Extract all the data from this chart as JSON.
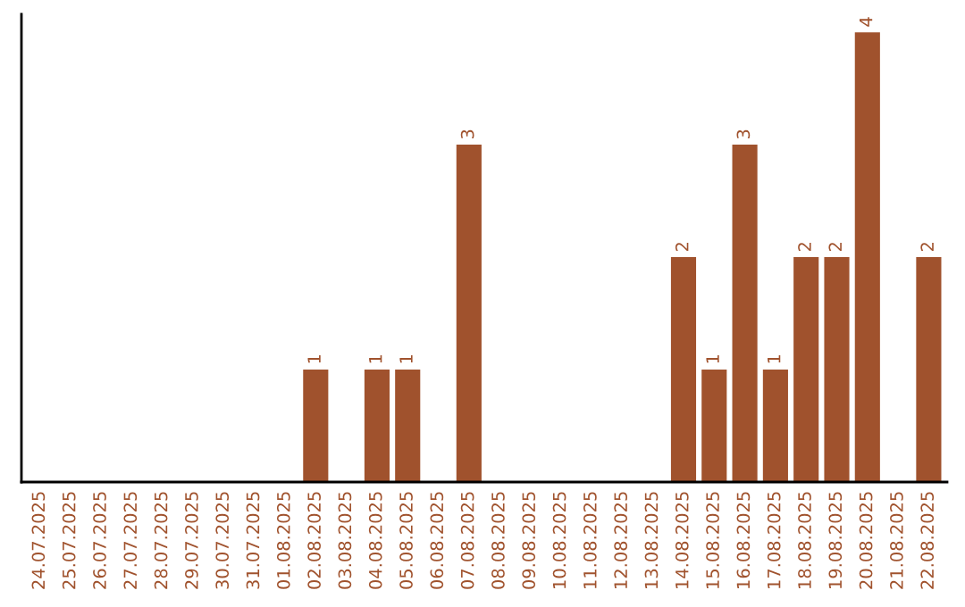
{
  "chart_data": {
    "type": "bar",
    "categories": [
      "24.07.2025",
      "25.07.2025",
      "26.07.2025",
      "27.07.2025",
      "28.07.2025",
      "29.07.2025",
      "30.07.2025",
      "31.07.2025",
      "01.08.2025",
      "02.08.2025",
      "03.08.2025",
      "04.08.2025",
      "05.08.2025",
      "06.08.2025",
      "07.08.2025",
      "08.08.2025",
      "09.08.2025",
      "10.08.2025",
      "11.08.2025",
      "12.08.2025",
      "13.08.2025",
      "14.08.2025",
      "15.08.2025",
      "16.08.2025",
      "17.08.2025",
      "18.08.2025",
      "19.08.2025",
      "20.08.2025",
      "21.08.2025",
      "22.08.2025"
    ],
    "values": [
      0,
      0,
      0,
      0,
      0,
      0,
      0,
      0,
      0,
      1,
      0,
      1,
      1,
      0,
      3,
      0,
      0,
      0,
      0,
      0,
      0,
      2,
      1,
      3,
      1,
      2,
      2,
      4,
      0,
      2
    ],
    "value_labels": [
      null,
      null,
      null,
      null,
      null,
      null,
      null,
      null,
      null,
      "1",
      null,
      "1",
      "1",
      null,
      "3",
      null,
      null,
      null,
      null,
      null,
      null,
      "2",
      "1",
      "3",
      "1",
      "2",
      "2",
      "4",
      null,
      "2"
    ],
    "color": "#a0522d",
    "tick_labels": "x",
    "grid": false
  }
}
